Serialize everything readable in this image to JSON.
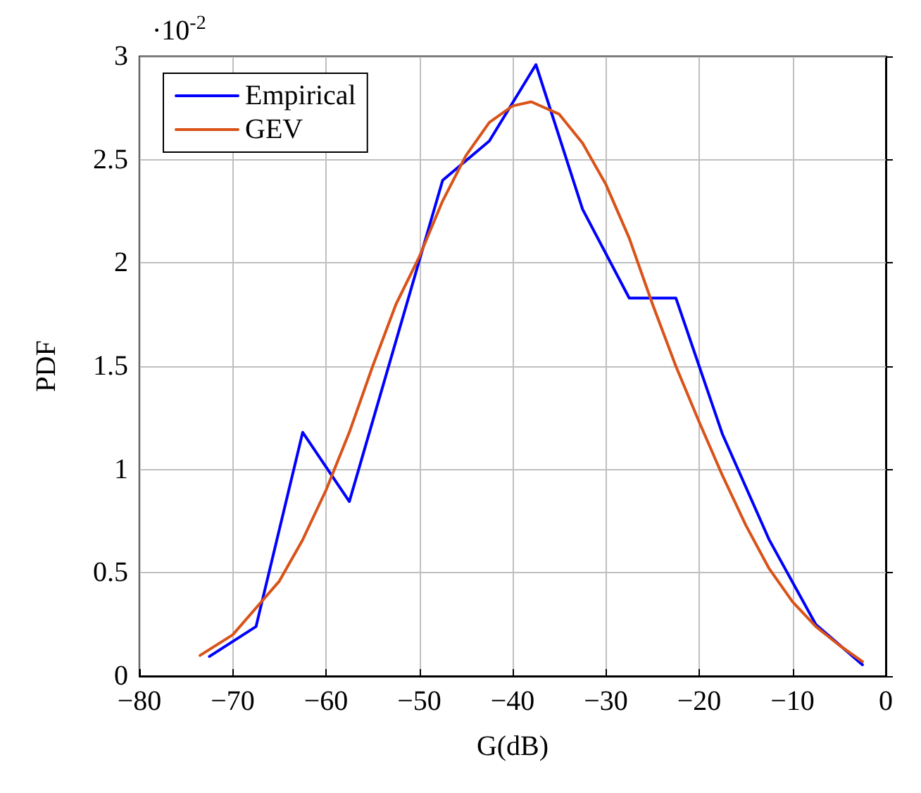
{
  "chart_data": {
    "type": "line",
    "xlabel": "G(dB)",
    "ylabel": "PDF",
    "annotations": [
      "·10$^{-2}$"
    ],
    "xlim": [
      -80,
      0
    ],
    "xticks": [
      -80,
      -70,
      -60,
      -50,
      -40,
      -30,
      -20,
      -10,
      0
    ],
    "ylim": [
      0,
      3
    ],
    "yticks": [
      0,
      0.5,
      1,
      1.5,
      2,
      2.5,
      3
    ],
    "grid": true,
    "legend": "top left",
    "marker": "none",
    "line_style": "solid",
    "series": [
      {
        "name": "Empirical",
        "color": "#0000ff",
        "x": [
          -72.5,
          -67.5,
          -62.5,
          -57.5,
          -47.5,
          -42.5,
          -37.5,
          -32.5,
          -27.5,
          -22.5,
          -17.5,
          -12.5,
          -7.5,
          -2.5
        ],
        "values": [
          0.095,
          0.24,
          1.18,
          0.845,
          2.4,
          2.59,
          2.96,
          2.26,
          1.83,
          1.83,
          1.17,
          0.66,
          0.25,
          0.055
        ]
      },
      {
        "name": "GEV",
        "color": "#d95319",
        "x": [
          -73.5,
          -70,
          -67.5,
          -65,
          -62.5,
          -60,
          -57.5,
          -55,
          -52.5,
          -50,
          -47.5,
          -45,
          -42.5,
          -40,
          -38,
          -35,
          -32.5,
          -30,
          -27.5,
          -25,
          -22.5,
          -20,
          -17.5,
          -15,
          -12.5,
          -10,
          -7.5,
          -5,
          -2.5
        ],
        "values": [
          0.1,
          0.2,
          0.33,
          0.46,
          0.66,
          0.9,
          1.18,
          1.5,
          1.8,
          2.03,
          2.3,
          2.52,
          2.68,
          2.76,
          2.78,
          2.72,
          2.58,
          2.38,
          2.12,
          1.8,
          1.5,
          1.23,
          0.97,
          0.73,
          0.52,
          0.36,
          0.24,
          0.15,
          0.07
        ]
      }
    ]
  }
}
